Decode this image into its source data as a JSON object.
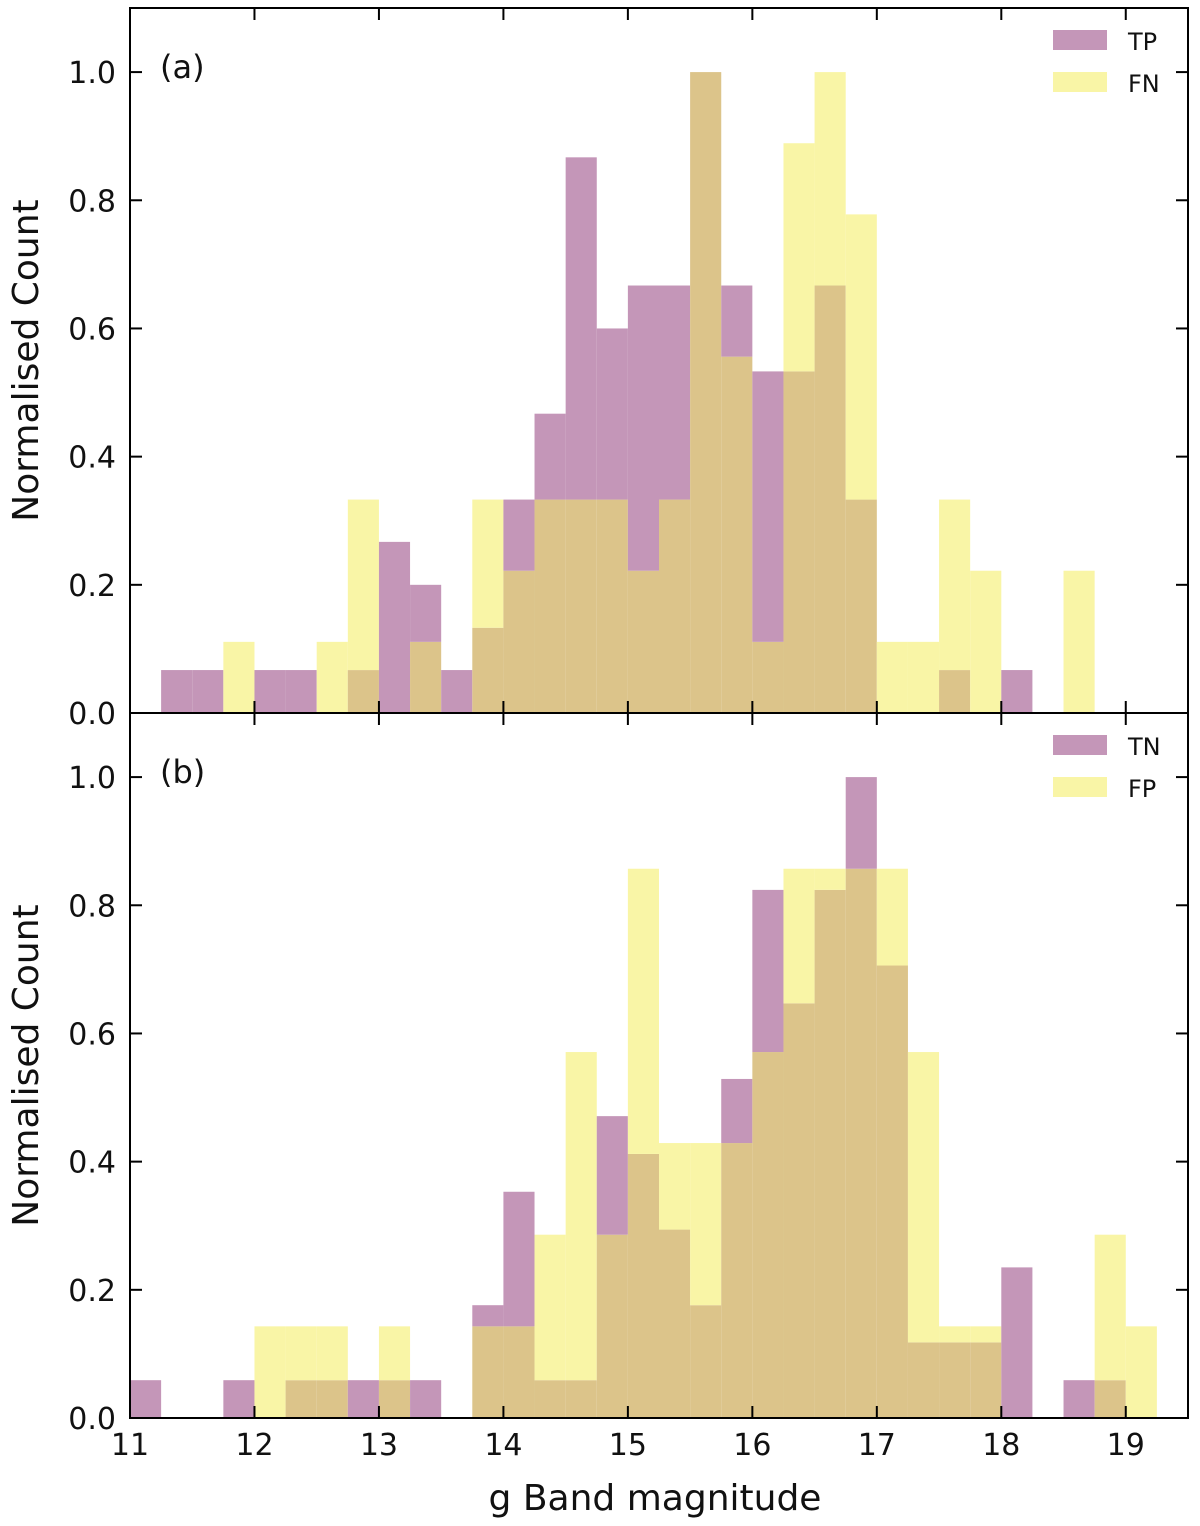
{
  "figure": {
    "xlabel": "g Band magnitude",
    "x_tick_labels": [
      "11",
      "12",
      "13",
      "14",
      "15",
      "16",
      "17",
      "18",
      "19"
    ]
  },
  "colors": {
    "series_a": "#a04a86",
    "series_b": "#f2ec60",
    "overlap": "#dcc48a"
  },
  "chart_data": [
    {
      "type": "bar",
      "subtype": "histogram",
      "panel_label": "(a)",
      "xlabel": "",
      "ylabel": "Normalised Count",
      "xlim": [
        11,
        19.5
      ],
      "ylim": [
        0,
        1.1
      ],
      "y_tick_labels": [
        "0.0",
        "0.2",
        "0.4",
        "0.6",
        "0.8",
        "1.0"
      ],
      "legend": "top-right",
      "bin_width": 0.25,
      "bin_starts": [
        11.25,
        11.5,
        11.75,
        12.0,
        12.25,
        12.5,
        12.75,
        13.0,
        13.25,
        13.5,
        13.75,
        14.0,
        14.25,
        14.5,
        14.75,
        15.0,
        15.25,
        15.5,
        15.75,
        16.0,
        16.25,
        16.5,
        16.75,
        17.0,
        17.25,
        17.5,
        17.75,
        18.0,
        18.25,
        18.5
      ],
      "series": [
        {
          "name": "TP",
          "values": [
            0.067,
            0.067,
            0,
            0.067,
            0.067,
            0,
            0.067,
            0.267,
            0.2,
            0.067,
            0.133,
            0.333,
            0.467,
            0.867,
            0.6,
            0.667,
            0.667,
            1.0,
            0.667,
            0.533,
            0.533,
            0.667,
            0.333,
            0,
            0,
            0.067,
            0,
            0.067,
            0,
            0
          ]
        },
        {
          "name": "FN",
          "values": [
            0,
            0,
            0.111,
            0,
            0,
            0.111,
            0.333,
            0,
            0.111,
            0,
            0.333,
            0.222,
            0.333,
            0.333,
            0.333,
            0.222,
            0.333,
            1.0,
            0.556,
            0.111,
            0.889,
            1.0,
            0.778,
            0.111,
            0.111,
            0.333,
            0.222,
            0,
            0,
            0.222
          ]
        }
      ]
    },
    {
      "type": "bar",
      "subtype": "histogram",
      "panel_label": "(b)",
      "xlabel": "g Band magnitude",
      "ylabel": "Normalised Count",
      "xlim": [
        11,
        19.5
      ],
      "ylim": [
        0,
        1.1
      ],
      "y_tick_labels": [
        "0.0",
        "0.2",
        "0.4",
        "0.6",
        "0.8",
        "1.0"
      ],
      "legend": "top-right",
      "bin_width": 0.25,
      "bin_starts": [
        11.0,
        11.25,
        11.5,
        11.75,
        12.0,
        12.25,
        12.5,
        12.75,
        13.0,
        13.25,
        13.5,
        13.75,
        14.0,
        14.25,
        14.5,
        14.75,
        15.0,
        15.25,
        15.5,
        15.75,
        16.0,
        16.25,
        16.5,
        16.75,
        17.0,
        17.25,
        17.5,
        17.75,
        18.0,
        18.25,
        18.5,
        18.75,
        19.0
      ],
      "series": [
        {
          "name": "TN",
          "values": [
            0.059,
            0,
            0,
            0.059,
            0,
            0.059,
            0.059,
            0.059,
            0.059,
            0.059,
            0,
            0.176,
            0.353,
            0.059,
            0.059,
            0.471,
            0.412,
            0.294,
            0.176,
            0.529,
            0.824,
            0.647,
            0.824,
            1.0,
            0.706,
            0.118,
            0.118,
            0.118,
            0.235,
            0,
            0.059,
            0.059,
            0
          ]
        },
        {
          "name": "FP",
          "values": [
            0,
            0,
            0,
            0,
            0.143,
            0.143,
            0.143,
            0,
            0.143,
            0,
            0,
            0.143,
            0.143,
            0.286,
            0.571,
            0.286,
            0.857,
            0.429,
            0.429,
            0.429,
            0.571,
            0.857,
            0.857,
            0.857,
            0.857,
            0.571,
            0.143,
            0.143,
            0,
            0,
            0,
            0.286,
            0.143
          ]
        }
      ]
    }
  ]
}
